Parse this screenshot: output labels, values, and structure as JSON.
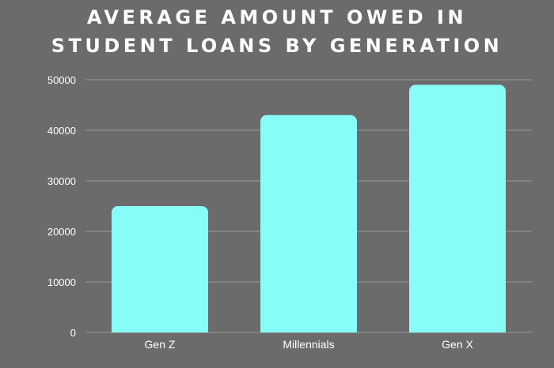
{
  "colors": {
    "background": "#6b6b6b",
    "bar": "#87fdf7",
    "grid": "#9a9a9a",
    "text": "#ffffff"
  },
  "chart_data": {
    "type": "bar",
    "title_lines": [
      "AVERAGE AMOUNT OWED IN",
      "STUDENT LOANS BY GENERATION"
    ],
    "categories": [
      "Gen Z",
      "Millennials",
      "Gen X"
    ],
    "values": [
      25000,
      43000,
      49000
    ],
    "ylim": [
      0,
      50000
    ],
    "yticks": [
      0,
      10000,
      20000,
      30000,
      40000,
      50000
    ],
    "grid": true,
    "legend": "none"
  }
}
